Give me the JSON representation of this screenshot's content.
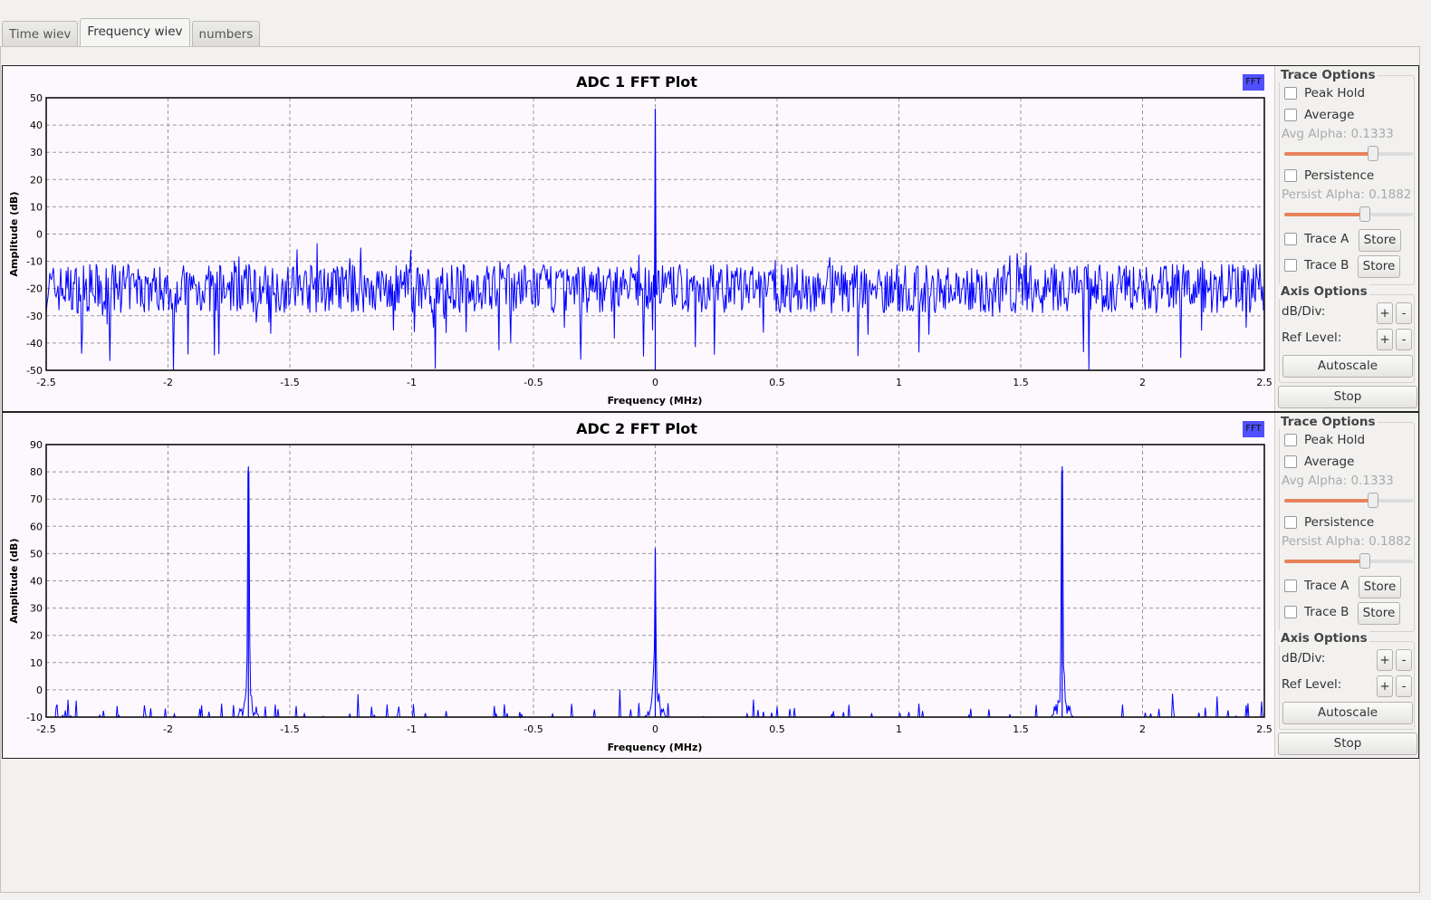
{
  "tabs": [
    {
      "label": "Time wiev",
      "active": false
    },
    {
      "label": "Frequency wiev",
      "active": true
    },
    {
      "label": "numbers",
      "active": false
    }
  ],
  "colors": {
    "trace": "#0000ff",
    "plot_bg": "#fdf8fd",
    "fft_button": "#5050ff",
    "slider_fill": "#e8825a"
  },
  "plots": [
    {
      "fft_label": "FFT",
      "side": {
        "trace_title": "Trace Options",
        "peak_hold": "Peak Hold",
        "average": "Average",
        "avg_alpha": "Avg Alpha: 0.1333",
        "avg_alpha_value": 0.1333,
        "persistence": "Persistence",
        "persist_alpha": "Persist Alpha: 0.1882",
        "persist_alpha_value": 0.1882,
        "trace_a": "Trace A",
        "trace_b": "Trace B",
        "store": "Store",
        "axis_title": "Axis Options",
        "db_div": "dB/Div:",
        "ref_level": "Ref Level:",
        "plus": "+",
        "minus": "-",
        "autoscale": "Autoscale",
        "stop": "Stop"
      }
    },
    {
      "fft_label": "FFT",
      "side": {
        "trace_title": "Trace Options",
        "peak_hold": "Peak Hold",
        "average": "Average",
        "avg_alpha": "Avg Alpha: 0.1333",
        "avg_alpha_value": 0.1333,
        "persistence": "Persistence",
        "persist_alpha": "Persist Alpha: 0.1882",
        "persist_alpha_value": 0.1882,
        "trace_a": "Trace A",
        "trace_b": "Trace B",
        "store": "Store",
        "axis_title": "Axis Options",
        "db_div": "dB/Div:",
        "ref_level": "Ref Level:",
        "plus": "+",
        "minus": "-",
        "autoscale": "Autoscale",
        "stop": "Stop"
      }
    }
  ],
  "chart_data": [
    {
      "type": "line",
      "title": "ADC 1 FFT Plot",
      "xlabel": "Frequency (MHz)",
      "ylabel": "Amplitude (dB)",
      "xlim": [
        -2.5,
        2.5
      ],
      "ylim": [
        -50,
        50
      ],
      "xticks": [
        "-2.5",
        "-2",
        "-1.5",
        "-1",
        "-0.5",
        "0",
        "0.5",
        "1",
        "1.5",
        "2",
        "2.5"
      ],
      "yticks": [
        "50",
        "40",
        "30",
        "20",
        "10",
        "0",
        "-10",
        "-20",
        "-30",
        "-40",
        "-50"
      ],
      "grid": true,
      "noise_floor_db": -20,
      "noise_range_db": [
        -45,
        -7
      ],
      "peaks": [
        {
          "x": 0,
          "y": 46
        }
      ]
    },
    {
      "type": "line",
      "title": "ADC 2 FFT Plot",
      "xlabel": "Frequency (MHz)",
      "ylabel": "Amplitude (dB)",
      "xlim": [
        -2.5,
        2.5
      ],
      "ylim": [
        -10,
        90
      ],
      "xticks": [
        "-2.5",
        "-2",
        "-1.5",
        "-1",
        "-0.5",
        "0",
        "0.5",
        "1",
        "1.5",
        "2",
        "2.5"
      ],
      "yticks": [
        "90",
        "80",
        "70",
        "60",
        "50",
        "40",
        "30",
        "20",
        "10",
        "0",
        "-10"
      ],
      "grid": true,
      "noise_floor_db": -10,
      "noise_range_db": [
        -10,
        2
      ],
      "peaks": [
        {
          "x": -1.67,
          "y": 82
        },
        {
          "x": 0,
          "y": 52
        },
        {
          "x": 1.67,
          "y": 82
        }
      ]
    }
  ]
}
